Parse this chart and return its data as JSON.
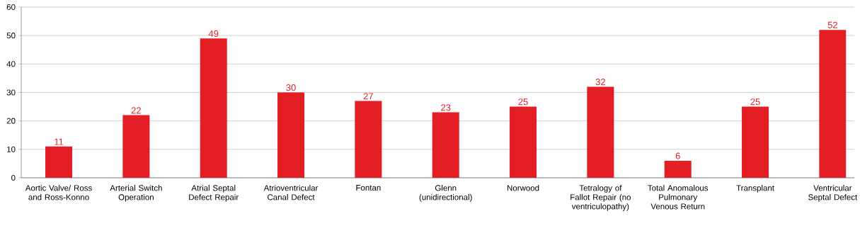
{
  "chart_data": {
    "type": "bar",
    "categories": [
      "Aortic Valve/ Ross and Ross-Konno",
      "Arterial Switch Operation",
      "Atrial Septal Defect Repair",
      "Atrioventricular Canal Defect",
      "Fontan",
      "Glenn (unidirectional)",
      "Norwood",
      "Tetralogy of Fallot Repair (no ventriculopathy)",
      "Total Anomalous Pulmonary Venous Return",
      "Transplant",
      "Ventricular Septal Defect"
    ],
    "values": [
      11,
      22,
      49,
      30,
      27,
      23,
      25,
      32,
      6,
      25,
      52
    ],
    "color": "#e31e24",
    "ylim": [
      0,
      60
    ],
    "yticks": [
      0,
      10,
      20,
      30,
      40,
      50,
      60
    ],
    "grid": "y",
    "data_labels": true
  }
}
